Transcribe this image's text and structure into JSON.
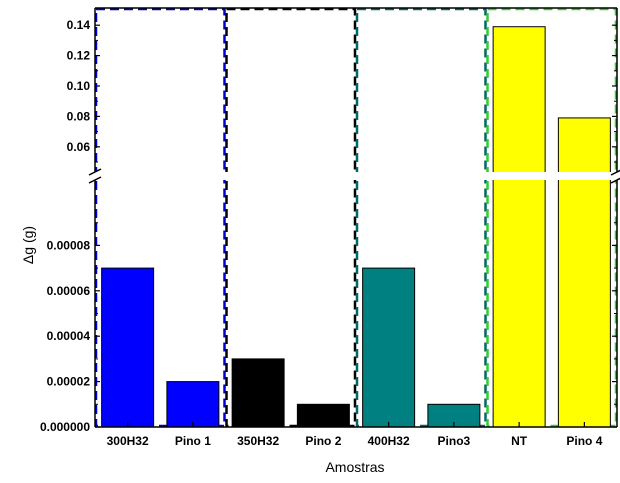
{
  "chart_data": {
    "type": "bar",
    "xlabel": "Amostras",
    "ylabel": "Δg (g)",
    "categories": [
      "300H32",
      "Pino 1",
      "350H32",
      "Pino 2",
      "400H32",
      "Pino3",
      "NT",
      "Pino 4"
    ],
    "values": [
      7e-05,
      2e-05,
      3e-05,
      1e-05,
      7e-05,
      1e-05,
      0.139,
      0.079
    ],
    "bar_colors": [
      "#0000ff",
      "#0000ff",
      "#000000",
      "#000000",
      "#008080",
      "#008080",
      "#ffff00",
      "#ffff00"
    ],
    "axis_break": true,
    "lower_ylim": [
      0,
      0.0001
    ],
    "upper_ylim": [
      0.05,
      0.15
    ],
    "lower_yticks": [
      "0.000000",
      "0.00002",
      "0.00004",
      "0.00006",
      "0.00008"
    ],
    "upper_yticks": [
      "0.06",
      "0.08",
      "0.10",
      "0.12",
      "0.14"
    ],
    "group_boxes": [
      {
        "color": "#0000cc",
        "categories": [
          "300H32",
          "Pino 1"
        ]
      },
      {
        "color": "#000000",
        "categories": [
          "350H32",
          "Pino 2"
        ]
      },
      {
        "color": "#006666",
        "categories": [
          "400H32",
          "Pino3"
        ]
      },
      {
        "color": "#33cc33",
        "categories": [
          "NT",
          "Pino 4"
        ]
      }
    ],
    "grid": false,
    "legend": "none"
  }
}
